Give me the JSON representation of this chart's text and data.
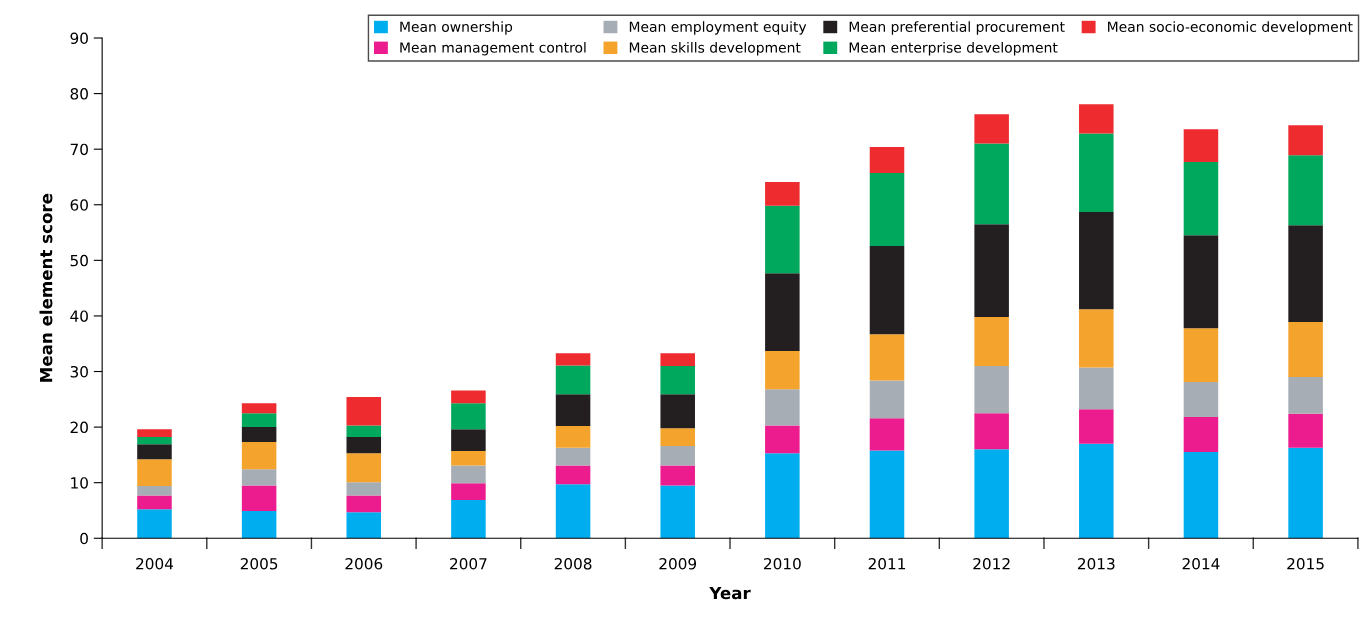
{
  "chart_data": {
    "type": "bar",
    "stacked": true,
    "xlabel": "Year",
    "ylabel": "Mean element score",
    "categories": [
      "2004",
      "2005",
      "2006",
      "2007",
      "2008",
      "2009",
      "2010",
      "2011",
      "2012",
      "2013",
      "2014",
      "2015"
    ],
    "ylim": [
      0,
      90
    ],
    "yticks": [
      0,
      10,
      20,
      30,
      40,
      50,
      60,
      70,
      80,
      90
    ],
    "grid": false,
    "legend": "top right",
    "series": [
      {
        "name": "Mean ownership",
        "color": "#00aeef",
        "values": [
          5.2,
          4.9,
          4.7,
          6.9,
          9.7,
          9.5,
          15.3,
          15.8,
          16.0,
          17.0,
          15.5,
          16.3
        ]
      },
      {
        "name": "Mean management control",
        "color": "#ec1c8f",
        "values": [
          2.5,
          4.6,
          3.0,
          3.0,
          3.4,
          3.6,
          5.0,
          5.8,
          6.5,
          6.2,
          6.3,
          6.1
        ]
      },
      {
        "name": "Mean employment equity",
        "color": "#a7adb4",
        "values": [
          1.7,
          2.9,
          2.4,
          3.2,
          3.2,
          3.5,
          6.5,
          6.8,
          8.5,
          7.5,
          6.3,
          6.6
        ]
      },
      {
        "name": "Mean skills development",
        "color": "#f4a42c",
        "values": [
          4.8,
          4.9,
          5.2,
          2.6,
          3.9,
          3.2,
          6.9,
          8.3,
          8.8,
          10.5,
          9.7,
          9.9
        ]
      },
      {
        "name": "Mean preferential procurement",
        "color": "#231f20",
        "values": [
          2.7,
          2.7,
          2.9,
          3.9,
          5.7,
          6.1,
          14.0,
          15.9,
          16.7,
          17.5,
          16.7,
          17.4
        ]
      },
      {
        "name": "Mean enterprise development",
        "color": "#00a85d",
        "values": [
          1.3,
          2.5,
          2.1,
          4.7,
          5.2,
          5.1,
          12.1,
          13.1,
          14.5,
          14.1,
          13.2,
          12.6
        ]
      },
      {
        "name": "Mean socio-economic development",
        "color": "#ee2b2f",
        "values": [
          1.4,
          1.8,
          5.1,
          2.3,
          2.2,
          2.3,
          4.3,
          4.7,
          5.3,
          5.3,
          5.9,
          5.4
        ]
      }
    ]
  }
}
